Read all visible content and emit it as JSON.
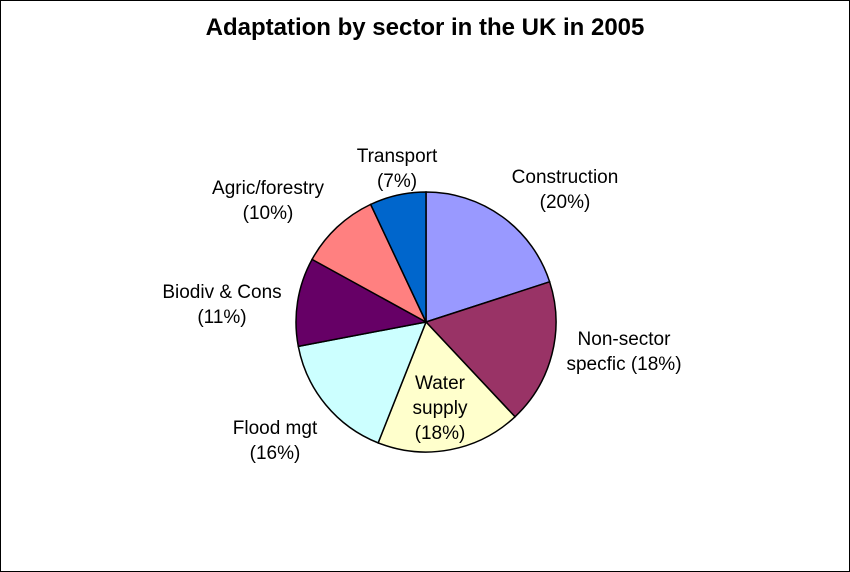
{
  "chart_data": {
    "type": "pie",
    "title": "Adaptation by sector in the UK in 2005",
    "slices": [
      {
        "label_lines": [
          "Construction",
          "(20%)"
        ],
        "value": 20,
        "color": "#9999FF"
      },
      {
        "label_lines": [
          "Non-sector",
          "specfic (18%)"
        ],
        "value": 18,
        "color": "#993366"
      },
      {
        "label_lines": [
          "Water",
          "supply",
          "(18%)"
        ],
        "value": 18,
        "color": "#FFFFCC"
      },
      {
        "label_lines": [
          "Flood mgt",
          "(16%)"
        ],
        "value": 16,
        "color": "#CCFFFF"
      },
      {
        "label_lines": [
          "Biodiv & Cons",
          "(11%)"
        ],
        "value": 11,
        "color": "#660066"
      },
      {
        "label_lines": [
          "Agric/forestry",
          "(10%)"
        ],
        "value": 10,
        "color": "#FF8080"
      },
      {
        "label_lines": [
          "Transport",
          "(7%)"
        ],
        "value": 7,
        "color": "#0066CC"
      }
    ],
    "start_angle_deg": 0,
    "direction": "clockwise"
  }
}
